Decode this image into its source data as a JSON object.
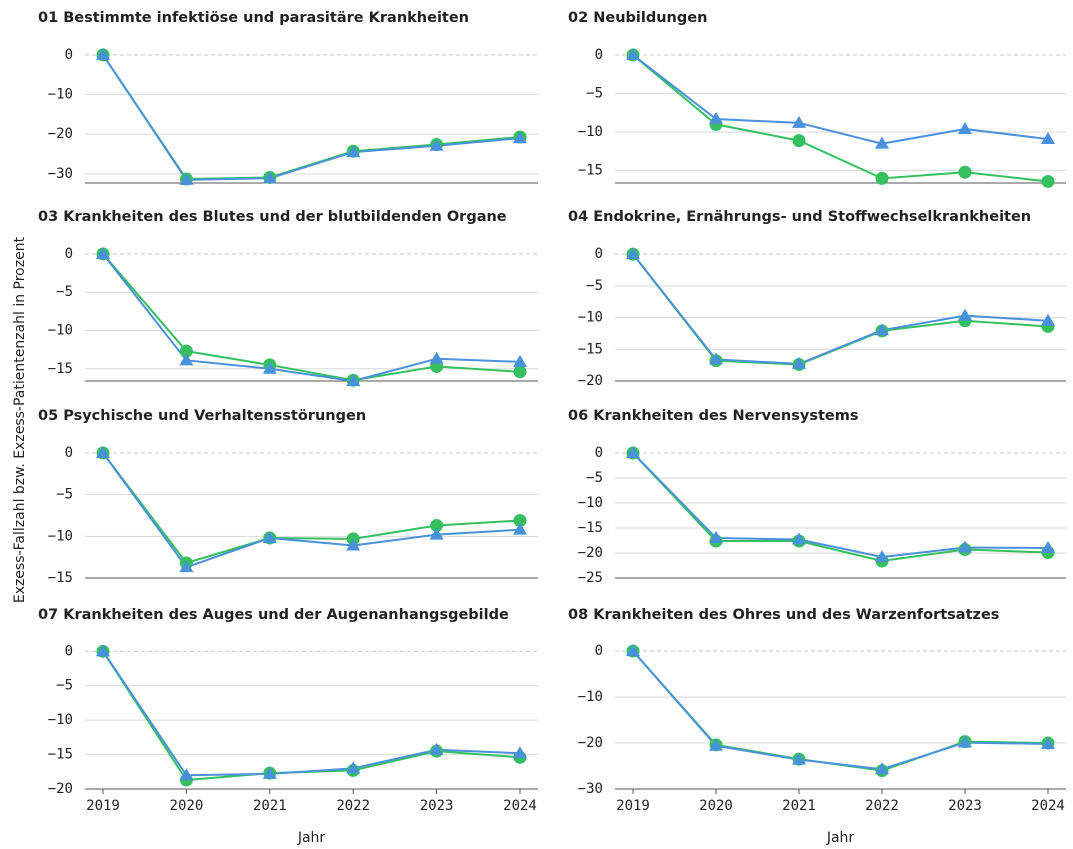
{
  "ylabel": "Exzess-Fallzahl bzw. Exzess-Patientenzahl in Prozent",
  "chart_data": [
    {
      "type": "line",
      "title": "01 Bestimmte infektiöse und parasitäre Krankheiten",
      "categories": [
        null,
        null,
        null,
        null,
        null,
        null
      ],
      "series": [
        {
          "color": "#34c05e",
          "marker": "circle",
          "values": [
            0,
            -31.3,
            -30.9,
            -24.3,
            -22.6,
            -20.7
          ]
        },
        {
          "color": "#4a91dc",
          "marker": "triangle",
          "values": [
            0,
            -31.5,
            -31.1,
            -24.5,
            -22.9,
            -21.0
          ]
        }
      ],
      "ylim": [
        -32.3,
        2.5
      ],
      "yticks": [
        0,
        {
          "value": -10,
          "label": "−10"
        },
        {
          "value": -20,
          "label": "−20"
        },
        {
          "value": -30,
          "label": "−30"
        }
      ],
      "grid": true
    },
    {
      "type": "line",
      "title": "02 Neubildungen",
      "categories": [
        null,
        null,
        null,
        null,
        null,
        null
      ],
      "series": [
        {
          "color": "#34c05e",
          "marker": "circle",
          "values": [
            0,
            -9.0,
            -11.1,
            -16.0,
            -15.2,
            -16.4
          ]
        },
        {
          "color": "#4a91dc",
          "marker": "triangle",
          "values": [
            0,
            -8.3,
            -8.8,
            -11.5,
            -9.6,
            -10.9
          ]
        }
      ],
      "ylim": [
        -16.6,
        1.3
      ],
      "yticks": [
        0,
        {
          "value": -5,
          "label": "−5"
        },
        {
          "value": -10,
          "label": "−10"
        },
        {
          "value": -15,
          "label": "−15"
        }
      ],
      "grid": true
    },
    {
      "type": "line",
      "title": "03 Krankheiten des Blutes und der blutbildenden Organe",
      "categories": [
        null,
        null,
        null,
        null,
        null,
        null
      ],
      "series": [
        {
          "color": "#34c05e",
          "marker": "circle",
          "values": [
            0,
            -12.7,
            -14.5,
            -16.5,
            -14.7,
            -15.4
          ]
        },
        {
          "color": "#4a91dc",
          "marker": "triangle",
          "values": [
            0,
            -13.9,
            -15.0,
            -16.6,
            -13.7,
            -14.1
          ]
        }
      ],
      "ylim": [
        -16.6,
        1.3
      ],
      "yticks": [
        0,
        {
          "value": -5,
          "label": "−5"
        },
        {
          "value": -10,
          "label": "−10"
        },
        {
          "value": -15,
          "label": "−15"
        }
      ],
      "grid": true
    },
    {
      "type": "line",
      "title": "04 Endokrine, Ernährungs- und Stoffwechselkrankheiten",
      "categories": [
        null,
        null,
        null,
        null,
        null,
        null
      ],
      "series": [
        {
          "color": "#34c05e",
          "marker": "circle",
          "values": [
            0,
            -16.8,
            -17.4,
            -12.1,
            -10.5,
            -11.4
          ]
        },
        {
          "color": "#4a91dc",
          "marker": "triangle",
          "values": [
            0,
            -16.6,
            -17.3,
            -12.0,
            -9.7,
            -10.5
          ]
        }
      ],
      "ylim": [
        -20,
        1.6
      ],
      "yticks": [
        0,
        {
          "value": -5,
          "label": "−5"
        },
        {
          "value": -10,
          "label": "−10"
        },
        {
          "value": -15,
          "label": "−15"
        },
        {
          "value": -20,
          "label": "−20"
        }
      ],
      "grid": true
    },
    {
      "type": "line",
      "title": "05 Psychische und Verhaltensstörungen",
      "categories": [
        null,
        null,
        null,
        null,
        null,
        null
      ],
      "series": [
        {
          "color": "#34c05e",
          "marker": "circle",
          "values": [
            0,
            -13.2,
            -10.2,
            -10.3,
            -8.7,
            -8.1
          ]
        },
        {
          "color": "#4a91dc",
          "marker": "triangle",
          "values": [
            0,
            -13.7,
            -10.2,
            -11.1,
            -9.8,
            -9.2
          ]
        }
      ],
      "ylim": [
        -15,
        1.2
      ],
      "yticks": [
        0,
        {
          "value": -5,
          "label": "−5"
        },
        {
          "value": -10,
          "label": "−10"
        },
        {
          "value": -15,
          "label": "−15"
        }
      ],
      "grid": true
    },
    {
      "type": "line",
      "title": "06 Krankheiten des Nervensystems",
      "categories": [
        null,
        null,
        null,
        null,
        null,
        null
      ],
      "series": [
        {
          "color": "#34c05e",
          "marker": "circle",
          "values": [
            0,
            -17.6,
            -17.6,
            -21.6,
            -19.3,
            -19.9
          ]
        },
        {
          "color": "#4a91dc",
          "marker": "triangle",
          "values": [
            0,
            -17.0,
            -17.3,
            -20.8,
            -18.9,
            -19.0
          ]
        }
      ],
      "ylim": [
        -25,
        2
      ],
      "yticks": [
        0,
        {
          "value": -5,
          "label": "−5"
        },
        {
          "value": -10,
          "label": "−10"
        },
        {
          "value": -15,
          "label": "−15"
        },
        {
          "value": -20,
          "label": "−20"
        },
        {
          "value": -25,
          "label": "−25"
        }
      ],
      "grid": true
    },
    {
      "type": "line",
      "title": "07 Krankheiten des Auges und der Augenanhangsgebilde",
      "xlabel": "Jahr",
      "categories": [
        "2019",
        "2020",
        "2021",
        "2022",
        "2023",
        "2024"
      ],
      "series": [
        {
          "color": "#34c05e",
          "marker": "circle",
          "values": [
            0,
            -18.7,
            -17.7,
            -17.3,
            -14.5,
            -15.4
          ]
        },
        {
          "color": "#4a91dc",
          "marker": "triangle",
          "values": [
            0,
            -18.0,
            -17.8,
            -17.0,
            -14.3,
            -14.8
          ]
        }
      ],
      "ylim": [
        -20,
        1.5
      ],
      "yticks": [
        0,
        {
          "value": -5,
          "label": "−5"
        },
        {
          "value": -10,
          "label": "−10"
        },
        {
          "value": -15,
          "label": "−15"
        },
        {
          "value": -20,
          "label": "−20"
        }
      ],
      "grid": true
    },
    {
      "type": "line",
      "title": "08 Krankheiten des Ohres und des Warzenfortsatzes",
      "xlabel": "Jahr",
      "categories": [
        "2019",
        "2020",
        "2021",
        "2022",
        "2023",
        "2024"
      ],
      "series": [
        {
          "color": "#34c05e",
          "marker": "circle",
          "values": [
            0,
            -20.4,
            -23.5,
            -26.0,
            -19.7,
            -20.0
          ]
        },
        {
          "color": "#4a91dc",
          "marker": "triangle",
          "values": [
            0,
            -20.6,
            -23.6,
            -25.7,
            -19.9,
            -20.2
          ]
        }
      ],
      "ylim": [
        -30,
        2.2
      ],
      "yticks": [
        0,
        {
          "value": -10,
          "label": "−10"
        },
        {
          "value": -20,
          "label": "−20"
        },
        {
          "value": -30,
          "label": "−30"
        }
      ],
      "grid": true
    }
  ]
}
